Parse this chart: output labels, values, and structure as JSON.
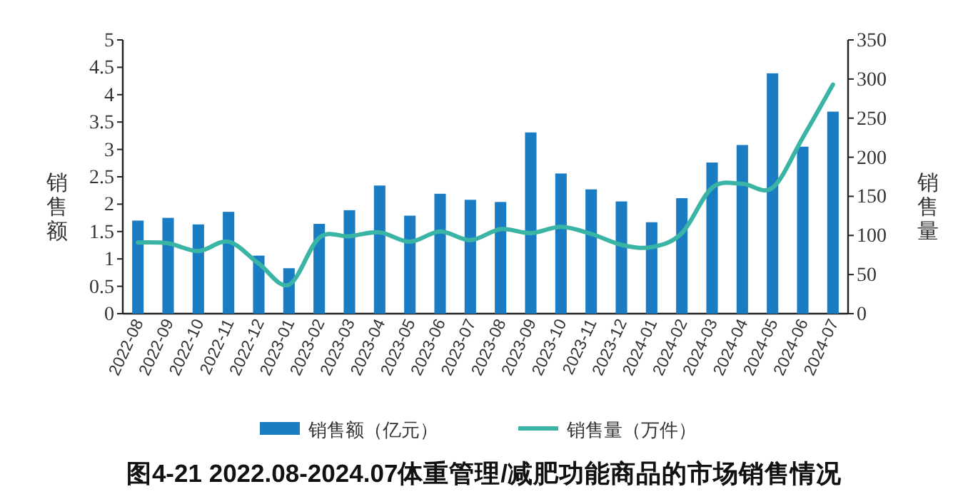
{
  "chart_data": {
    "type": "bar",
    "title": "图4-21 2022.08-2024.07体重管理/减肥功能商品的市场销售情况",
    "ylabel": "销售额",
    "y2label": "销售量",
    "categories": [
      "2022-08",
      "2022-09",
      "2022-10",
      "2022-11",
      "2022-12",
      "2023-01",
      "2023-02",
      "2023-03",
      "2023-04",
      "2023-05",
      "2023-06",
      "2023-07",
      "2023-08",
      "2023-09",
      "2023-10",
      "2023-11",
      "2023-12",
      "2024-01",
      "2024-02",
      "2024-03",
      "2024-04",
      "2024-05",
      "2024-06",
      "2024-07"
    ],
    "series": [
      {
        "name": "销售额（亿元）",
        "color": "#1a7dc4",
        "values": [
          1.7,
          1.75,
          1.63,
          1.86,
          1.06,
          0.83,
          1.64,
          1.89,
          2.34,
          1.79,
          2.19,
          2.08,
          2.04,
          3.31,
          2.56,
          2.27,
          2.05,
          1.67,
          2.11,
          2.76,
          3.08,
          4.39,
          3.05,
          3.69
        ]
      },
      {
        "name": "销售量（万件）",
        "type": "line",
        "axis": "y2",
        "color": "#3ab5a5",
        "values": [
          91,
          90,
          80,
          92,
          64,
          37,
          97,
          99,
          104,
          92,
          105,
          94,
          108,
          103,
          111,
          102,
          88,
          85,
          103,
          161,
          166,
          161,
          225,
          293
        ]
      }
    ],
    "ylim": [
      0,
      5
    ],
    "yticks": [
      0,
      0.5,
      1,
      1.5,
      2,
      2.5,
      3,
      3.5,
      4,
      4.5,
      5
    ],
    "y2lim": [
      0,
      350
    ],
    "y2ticks": [
      0,
      50,
      100,
      150,
      200,
      250,
      300,
      350
    ],
    "legend": "bottom",
    "grid": false
  }
}
